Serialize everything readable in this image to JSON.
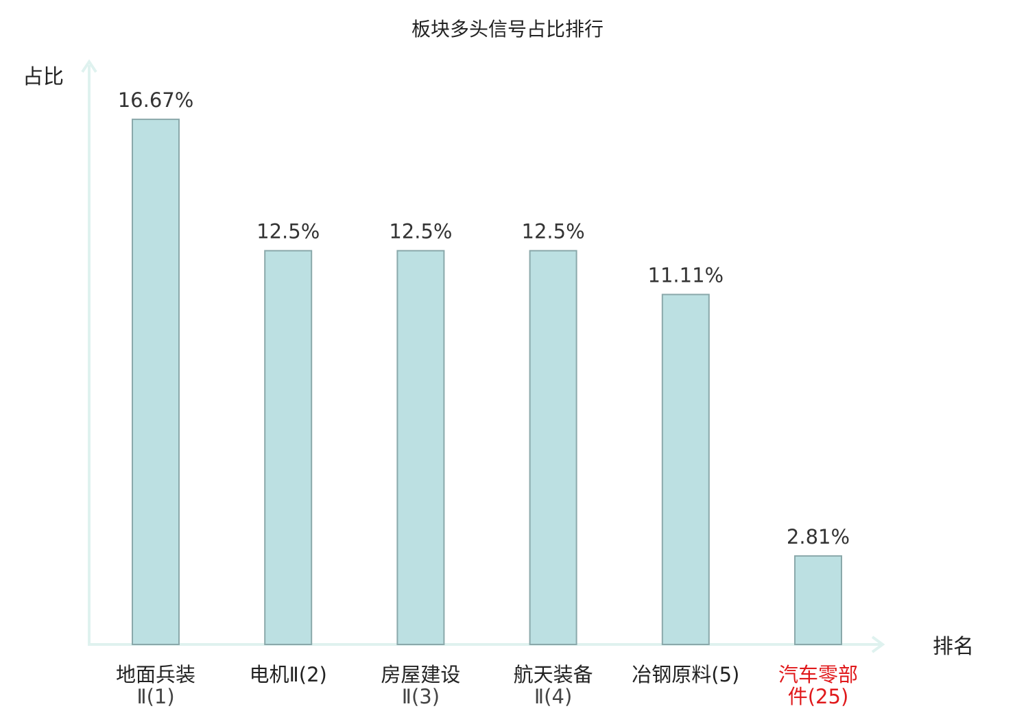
{
  "chart_data": {
    "type": "bar",
    "title": "板块多头信号占比排行",
    "ylabel": "占比",
    "xlabel": "排名",
    "ylim": [
      0,
      18.5
    ],
    "grid": false,
    "categories": [
      {
        "line1": "地面兵装",
        "line2": "Ⅱ(1)",
        "highlight": false
      },
      {
        "line1": "电机Ⅱ(2)",
        "line2": "",
        "highlight": false
      },
      {
        "line1": "房屋建设",
        "line2": "Ⅱ(3)",
        "highlight": false
      },
      {
        "line1": "航天装备",
        "line2": "Ⅱ(4)",
        "highlight": false
      },
      {
        "line1": "冶钢原料(5)",
        "line2": "",
        "highlight": false
      },
      {
        "line1": "汽车零部",
        "line2": "件(25)",
        "highlight": true
      }
    ],
    "values": [
      16.67,
      12.5,
      12.5,
      12.5,
      11.11,
      2.81
    ],
    "value_labels": [
      "16.67%",
      "12.5%",
      "12.5%",
      "12.5%",
      "11.11%",
      "2.81%"
    ],
    "colors": {
      "bar_fill": "#bce0e2",
      "bar_stroke": "#8aa8aa",
      "axis": "#dff2ef",
      "highlight": "#e0191b",
      "text": "#222222"
    }
  }
}
